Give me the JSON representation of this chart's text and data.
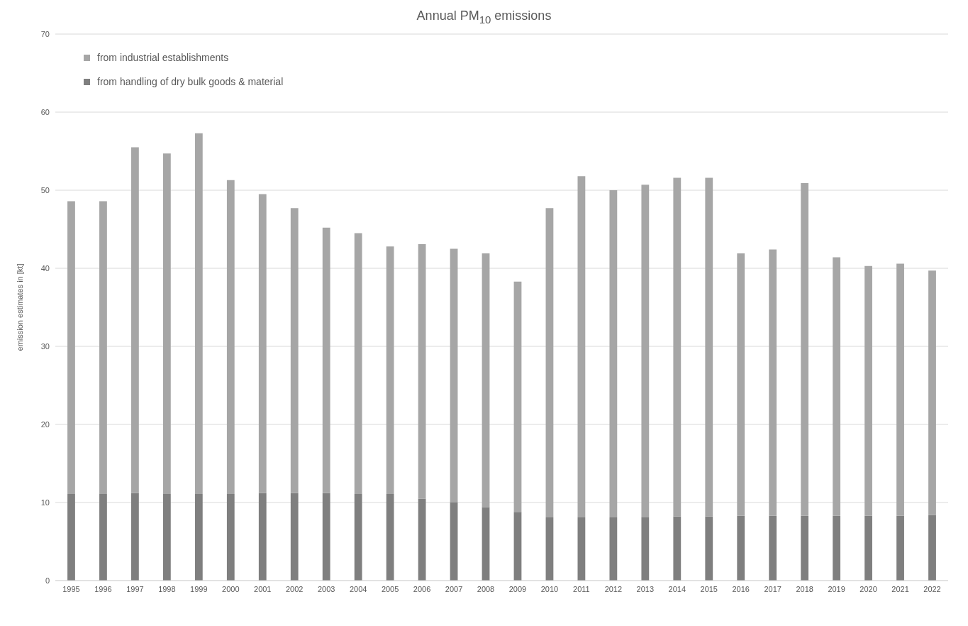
{
  "chart_data": {
    "type": "bar",
    "title": "Annual PM$_{10}$ emissions",
    "ylabel": "emission estimates in [kt]",
    "categories": [
      "1995",
      "1996",
      "1997",
      "1998",
      "1999",
      "2000",
      "2001",
      "2002",
      "2003",
      "2004",
      "2005",
      "2006",
      "2007",
      "2008",
      "2009",
      "2010",
      "2011",
      "2012",
      "2013",
      "2014",
      "2015",
      "2016",
      "2017",
      "2018",
      "2019",
      "2020",
      "2021",
      "2022"
    ],
    "stacked": true,
    "series": [
      {
        "name": "from handling of dry bulk goods & material",
        "color": "#7f7f7f",
        "values": [
          11.1,
          11.1,
          11.2,
          11.1,
          11.1,
          11.1,
          11.2,
          11.2,
          11.2,
          11.1,
          11.1,
          10.5,
          10.0,
          9.4,
          8.8,
          8.1,
          8.1,
          8.1,
          8.1,
          8.2,
          8.2,
          8.3,
          8.3,
          8.3,
          8.3,
          8.3,
          8.3,
          8.4
        ]
      },
      {
        "name": "from industrial establishments",
        "color": "#a6a6a6",
        "values": [
          37.5,
          37.5,
          44.3,
          43.6,
          46.2,
          40.2,
          38.3,
          36.5,
          34.0,
          33.4,
          31.7,
          32.6,
          32.5,
          32.5,
          29.5,
          39.6,
          43.7,
          41.9,
          42.6,
          43.4,
          43.4,
          33.6,
          34.1,
          42.6,
          33.1,
          32.0,
          32.3,
          31.3
        ]
      }
    ],
    "ylim": [
      0,
      70
    ],
    "yticks": [
      0,
      10,
      20,
      30,
      40,
      50,
      60,
      70
    ],
    "grid": "y",
    "legend": "top left"
  }
}
